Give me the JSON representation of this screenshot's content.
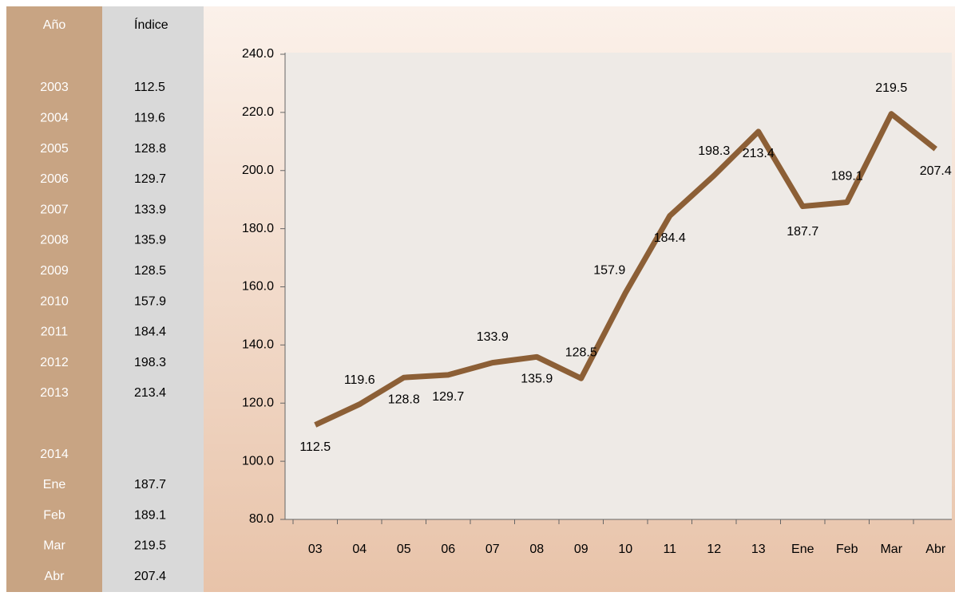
{
  "table": {
    "header": [
      "Año",
      "Índice"
    ],
    "rows": [
      [
        "2003",
        112.5
      ],
      [
        "2004",
        119.6
      ],
      [
        "2005",
        128.8
      ],
      [
        "2006",
        129.7
      ],
      [
        "2007",
        133.9
      ],
      [
        "2008",
        135.9
      ],
      [
        "2009",
        128.5
      ],
      [
        "2010",
        157.9
      ],
      [
        "2011",
        184.4
      ],
      [
        "2012",
        198.3
      ],
      [
        "2013",
        213.4
      ],
      [
        "2014"
      ],
      [
        "Ene",
        187.7
      ],
      [
        "Feb",
        189.1
      ],
      [
        "Mar",
        219.5
      ],
      [
        "Abr",
        207.4
      ]
    ]
  },
  "chart_data": {
    "type": "line",
    "categories": [
      "03",
      "04",
      "05",
      "06",
      "07",
      "08",
      "09",
      "10",
      "11",
      "12",
      "13",
      "Ene",
      "Feb",
      "Mar",
      "Abr"
    ],
    "values": [
      112.5,
      119.6,
      128.8,
      129.7,
      133.9,
      135.9,
      128.5,
      157.9,
      184.4,
      198.3,
      213.4,
      187.7,
      189.1,
      219.5,
      207.4
    ],
    "color": "#8c5f36",
    "ylim": [
      80,
      240
    ],
    "yticks": [
      {
        "value": 80,
        "label": "80.0"
      },
      {
        "value": 100,
        "label": "100.0"
      },
      {
        "value": 120,
        "label": "120.0"
      },
      {
        "value": 140,
        "label": "140.0"
      },
      {
        "value": 160,
        "label": "160.0"
      },
      {
        "value": 180,
        "label": "180.0"
      },
      {
        "value": 200,
        "label": "200.0"
      },
      {
        "value": 220,
        "label": "220.0"
      },
      {
        "value": 240,
        "label": "240.0"
      }
    ],
    "grid": false
  }
}
